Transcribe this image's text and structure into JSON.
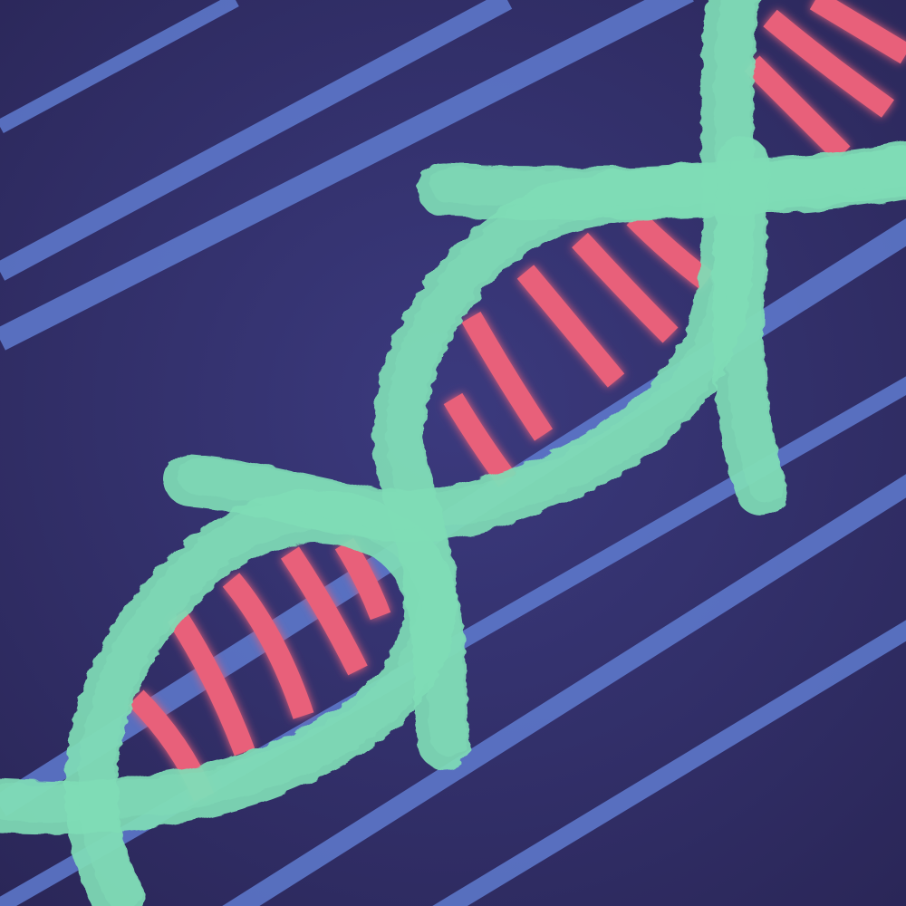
{
  "artwork": {
    "subject": "dna-double-helix-illustration",
    "colors": {
      "background_light": "#3b3a7e",
      "background_dark": "#2a2657",
      "stripe": "#5f7bcf",
      "backbone": "#7fdcb6",
      "base_pair": "#e8607a"
    }
  }
}
